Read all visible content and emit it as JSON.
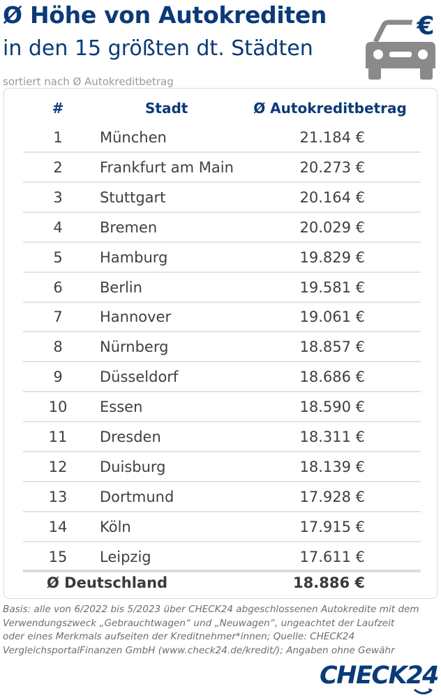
{
  "header": {
    "title": "Ø Höhe von Autokrediten",
    "subtitle": "in den 15 größten dt. Städten",
    "note": "sortiert nach Ø Autokreditbetrag",
    "icon": "car-euro-icon",
    "accent_color": "#0b3a78",
    "icon_color": "#8a8a8a"
  },
  "chart_data": {
    "type": "table",
    "columns": [
      "#",
      "Stadt",
      "Ø Autokreditbetrag"
    ],
    "rows": [
      {
        "rank": "1",
        "city": "München",
        "amount": "21.184 €",
        "value": 21184
      },
      {
        "rank": "2",
        "city": "Frankfurt am Main",
        "amount": "20.273 €",
        "value": 20273
      },
      {
        "rank": "3",
        "city": "Stuttgart",
        "amount": "20.164 €",
        "value": 20164
      },
      {
        "rank": "4",
        "city": "Bremen",
        "amount": "20.029 €",
        "value": 20029
      },
      {
        "rank": "5",
        "city": "Hamburg",
        "amount": "19.829 €",
        "value": 19829
      },
      {
        "rank": "6",
        "city": "Berlin",
        "amount": "19.581 €",
        "value": 19581
      },
      {
        "rank": "7",
        "city": "Hannover",
        "amount": "19.061 €",
        "value": 19061
      },
      {
        "rank": "8",
        "city": "Nürnberg",
        "amount": "18.857 €",
        "value": 18857
      },
      {
        "rank": "9",
        "city": "Düsseldorf",
        "amount": "18.686 €",
        "value": 18686
      },
      {
        "rank": "10",
        "city": "Essen",
        "amount": "18.590 €",
        "value": 18590
      },
      {
        "rank": "11",
        "city": "Dresden",
        "amount": "18.311 €",
        "value": 18311
      },
      {
        "rank": "12",
        "city": "Duisburg",
        "amount": "18.139 €",
        "value": 18139
      },
      {
        "rank": "13",
        "city": "Dortmund",
        "amount": "17.928 €",
        "value": 17928
      },
      {
        "rank": "14",
        "city": "Köln",
        "amount": "17.915 €",
        "value": 17915
      },
      {
        "rank": "15",
        "city": "Leipzig",
        "amount": "17.611 €",
        "value": 17611
      }
    ],
    "total": {
      "label": "Ø Deutschland",
      "amount": "18.886 €",
      "value": 18886
    }
  },
  "footer": {
    "source_lines": [
      "Basis: alle von 6/2022 bis 5/2023 über CHECK24 abgeschlossenen Autokredite mit dem",
      "Verwendungszweck „Gebrauchtwagen“ und „Neuwagen“, ungeachtet der Laufzeit",
      "oder eines Merkmals aufseiten der Kreditnehmer*innen; Quelle: CHECK24",
      "VergleichsportalFinanzen GmbH (www.check24.de/kredit/);  Angaben ohne Gewähr"
    ],
    "logo": "CHECK24"
  }
}
